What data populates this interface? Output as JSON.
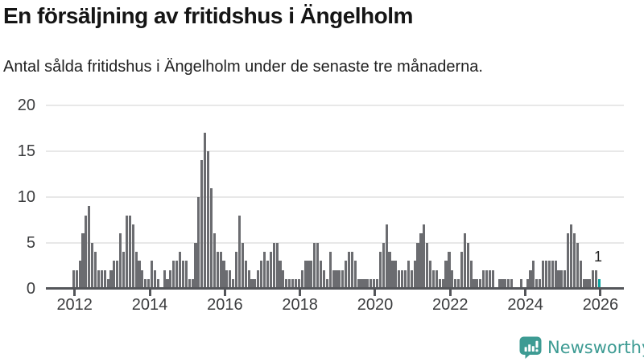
{
  "header": {
    "title": "En försäljning av fritidshus i Ängelholm",
    "subtitle": "Antal sålda fritidshus i Ängelholm under de senaste tre månaderna."
  },
  "chart_data": {
    "type": "bar",
    "title": "En försäljning av fritidshus i Ängelholm",
    "subtitle": "Antal sålda fritidshus i Ängelholm under de senaste tre månaderna.",
    "start_month": "2012-01",
    "end_month": "2026-01",
    "values": [
      2,
      2,
      3,
      6,
      8,
      9,
      5,
      4,
      2,
      2,
      2,
      1,
      2,
      3,
      3,
      6,
      4,
      8,
      8,
      7,
      4,
      3,
      2,
      1,
      1,
      3,
      2,
      1,
      0,
      2,
      1,
      2,
      3,
      3,
      4,
      3,
      3,
      1,
      1,
      5,
      10,
      14,
      17,
      15,
      11,
      6,
      4,
      4,
      3,
      2,
      2,
      1,
      4,
      8,
      5,
      3,
      2,
      1,
      1,
      2,
      3,
      4,
      3,
      4,
      5,
      5,
      3,
      2,
      1,
      1,
      1,
      1,
      1,
      2,
      3,
      3,
      3,
      5,
      5,
      3,
      2,
      1,
      4,
      2,
      2,
      2,
      2,
      3,
      4,
      4,
      3,
      1,
      1,
      1,
      1,
      1,
      1,
      1,
      4,
      5,
      7,
      4,
      3,
      3,
      2,
      2,
      2,
      3,
      2,
      3,
      5,
      6,
      7,
      5,
      3,
      2,
      2,
      1,
      1,
      3,
      4,
      2,
      1,
      1,
      4,
      6,
      5,
      3,
      1,
      1,
      1,
      2,
      2,
      2,
      2,
      0,
      1,
      1,
      1,
      1,
      1,
      0,
      0,
      1,
      0,
      1,
      2,
      3,
      1,
      1,
      3,
      3,
      3,
      3,
      3,
      2,
      2,
      2,
      6,
      7,
      6,
      5,
      3,
      1,
      1,
      1,
      2,
      2,
      1
    ],
    "years_covered": [
      "2012",
      "2013",
      "2014",
      "2015",
      "2016",
      "2017",
      "2018",
      "2019",
      "2020",
      "2021",
      "2022",
      "2023",
      "2024",
      "2025",
      "2026"
    ],
    "x_ticks": [
      "2012",
      "2014",
      "2016",
      "2018",
      "2020",
      "2022",
      "2024",
      "2026"
    ],
    "y_ticks": [
      0,
      5,
      10,
      15,
      20
    ],
    "ylim": [
      0,
      20
    ],
    "grid": "horizontal",
    "legend": "none",
    "bar_color": "#6b6c70",
    "highlight_last": true,
    "highlight_color": "#0aa5a2",
    "annotation": {
      "text": "1",
      "target": "last-bar"
    }
  },
  "footer": {
    "brand": "Newsworthy",
    "brand_color": "#3d9b93",
    "logo_icon": "newsworthy-bubble-chart-icon"
  }
}
